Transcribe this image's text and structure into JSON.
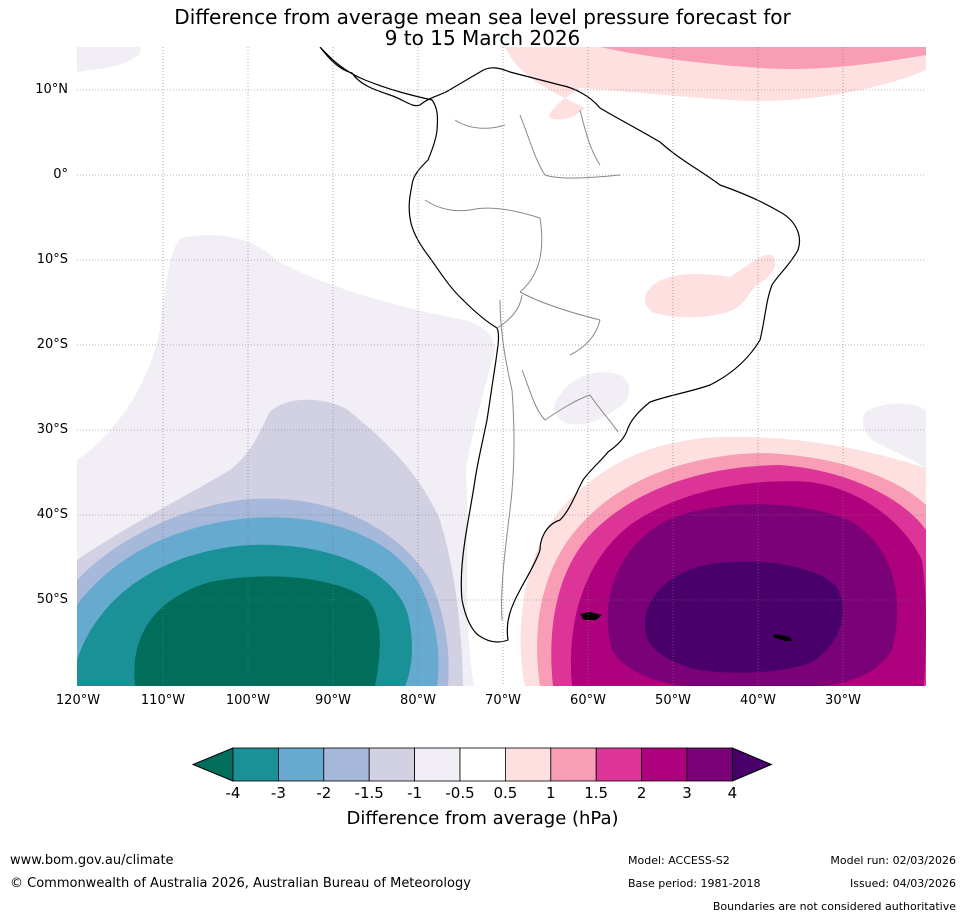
{
  "title": {
    "line1": "Difference from average mean sea level pressure forecast for",
    "line2": "9 to 15 March 2026"
  },
  "lat_labels": [
    "10°N",
    "0°",
    "10°S",
    "20°S",
    "30°S",
    "40°S",
    "50°S"
  ],
  "lon_labels": [
    "120°W",
    "110°W",
    "100°W",
    "90°W",
    "80°W",
    "70°W",
    "60°W",
    "50°W",
    "40°W",
    "30°W"
  ],
  "colorbar": {
    "ticks": [
      "-4",
      "-3",
      "-2",
      "-1.5",
      "-1",
      "-0.5",
      "0.5",
      "1",
      "1.5",
      "2",
      "3",
      "4"
    ],
    "colors": [
      "#1a9097",
      "#66abcf",
      "#a7b9da",
      "#d1d1e3",
      "#f2eef5",
      "#ffffff",
      "#fde0df",
      "#f99db7",
      "#dd3497",
      "#ae017e",
      "#7a0177"
    ],
    "low_extend_color": "#006e5a",
    "high_extend_color": "#49006a",
    "label": "Difference from average (hPa)"
  },
  "footer": {
    "website": "www.bom.gov.au/climate",
    "copyright": "© Commonwealth of Australia 2026, Australian Bureau of Meteorology",
    "model": "Model: ACCESS-S2",
    "base_period": "Base period: 1981-2018",
    "model_run": "Model run: 02/03/2026",
    "issued": "Issued: 04/03/2026",
    "boundaries_note": "Boundaries are not considered authoritative"
  }
}
